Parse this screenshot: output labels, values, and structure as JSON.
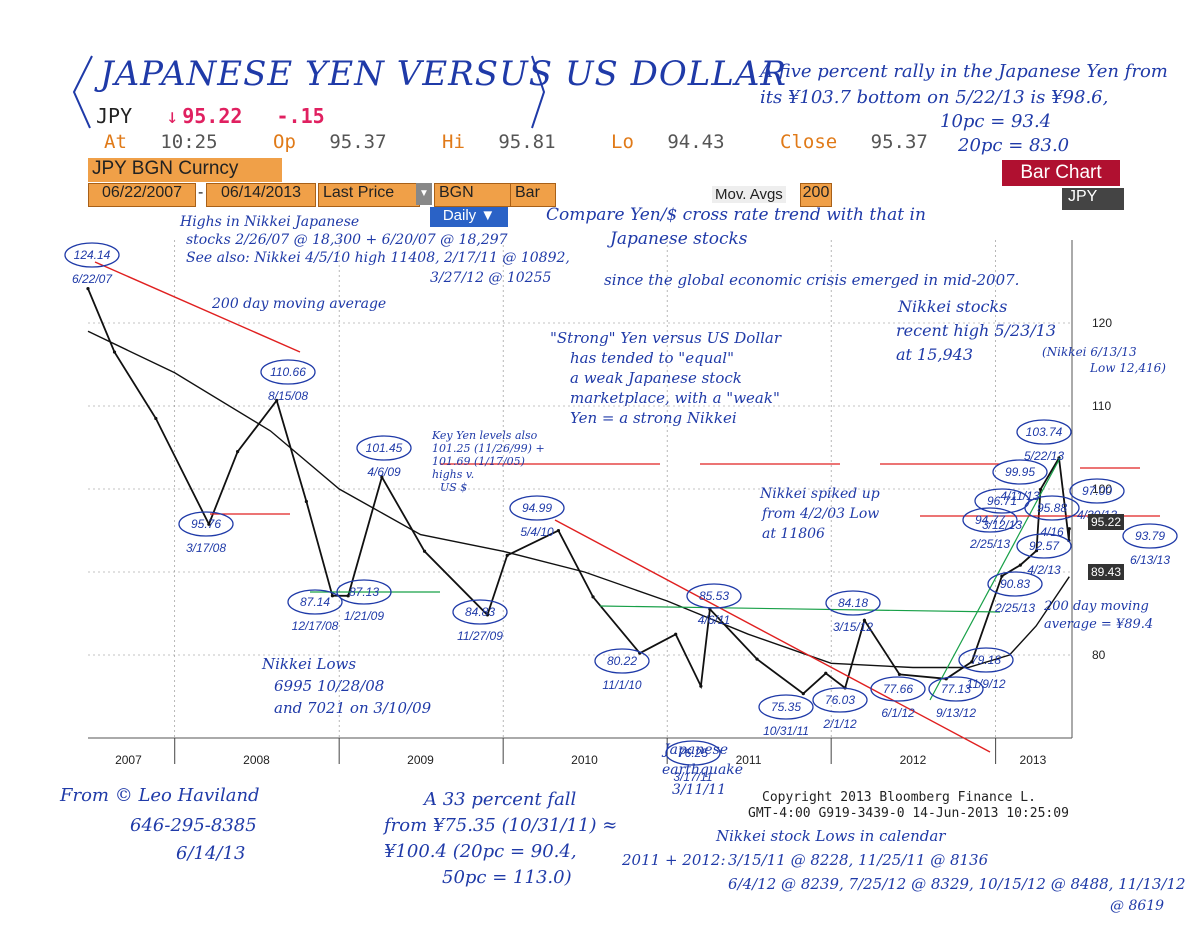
{
  "title": "JAPANESE YEN VERSUS US DOLLAR",
  "quote": {
    "ticker": "JPY",
    "arrow": "↓",
    "last": "95.22",
    "change": "-.15",
    "at_label": "At",
    "at_time": "10:25",
    "op_label": "Op",
    "op": "95.37",
    "hi_label": "Hi",
    "hi": "95.81",
    "lo_label": "Lo",
    "lo": "94.43",
    "close_label": "Close",
    "close": "95.37"
  },
  "toolbar": {
    "security": "JPY BGN Curncy",
    "start_date": "06/22/2007",
    "dash": "-",
    "end_date": "06/14/2013",
    "field": "Last Price",
    "source": "BGN",
    "style": "Bar",
    "mov_avgs_label": "Mov. Avgs",
    "mov_avgs_value": "200",
    "chart_type": "Bar Chart",
    "currency": "JPY",
    "period": "Daily ▼"
  },
  "copyright": {
    "line1": "Copyright 2013 Bloomberg Finance L.",
    "line2": "GMT-4:00 G919-3439-0 14-Jun-2013 10:25:09"
  },
  "price_tags": {
    "last": "95.22",
    "ma": "89.43"
  },
  "notes": {
    "top_right_1": "A five percent rally in the Japanese Yen from",
    "top_right_2": "its ¥103.7 bottom on 5/22/13 is ¥98.6,",
    "top_right_3": "10pc = 93.4",
    "top_right_4": "20pc = 83.0",
    "nikkei_highs_1": "Highs in Nikkei Japanese",
    "nikkei_highs_2": "stocks 2/26/07 @ 18,300 + 6/20/07 @ 18,297",
    "nikkei_highs_3": "See also: Nikkei 4/5/10 high 11408, 2/17/11 @ 10892,",
    "nikkei_highs_4": "3/27/12 @ 10255",
    "ma_label": "200 day moving average",
    "compare_1": "Compare Yen/$ cross rate trend with that in",
    "compare_2": "Japanese stocks",
    "compare_3": "since the global economic crisis emerged in mid-2007.",
    "strong_1": "\"Strong\" Yen versus US Dollar",
    "strong_2": "has tended to \"equal\"",
    "strong_3": "a weak Japanese stock",
    "strong_4": "marketplace, with a \"weak\"",
    "strong_5": "Yen = a strong Nikkei",
    "nikkei_recent_1": "Nikkei stocks",
    "nikkei_recent_2": "recent high 5/23/13",
    "nikkei_recent_3": "at 15,943",
    "nikkei_low_1": "(Nikkei 6/13/13",
    "nikkei_low_2": "Low 12,416)",
    "key_levels_1": "Key Yen levels also",
    "key_levels_2": "101.25 (11/26/99) +",
    "key_levels_3": "101.69 (1/17/05)",
    "key_levels_4": "highs v.",
    "key_levels_5": "US $",
    "nikkei_spike_1": "Nikkei spiked up",
    "nikkei_spike_2": "from 4/2/03 Low",
    "nikkei_spike_3": "at 11806",
    "nikkei_lows_1": "Nikkei Lows",
    "nikkei_lows_2": "6995 10/28/08",
    "nikkei_lows_3": "and 7021 on 3/10/09",
    "ma_note_1": "200 day moving",
    "ma_note_2": "average = ¥89.4",
    "quake_1": "Japanese",
    "quake_2": "earthquake",
    "quake_3": "3/11/11",
    "from_1": "From © Leo Haviland",
    "from_2": "646-295-8385",
    "from_3": "6/14/13",
    "fall_1": "A 33 percent fall",
    "fall_2": "from ¥75.35 (10/31/11) ≈",
    "fall_3": "¥100.4 (20pc = 90.4,",
    "fall_4": "50pc = 113.0)",
    "nikkei_cal_1": "Nikkei stock Lows in calendar",
    "nikkei_cal_2": "2011 + 2012:",
    "nikkei_cal_3": "3/15/11 @ 8228, 11/25/11 @ 8136",
    "nikkei_cal_4": "6/4/12 @ 8239, 7/25/12 @ 8329, 10/15/12 @ 8488, 11/13/12",
    "nikkei_cal_5": "@ 8619"
  },
  "chart_data": {
    "type": "line",
    "title": "",
    "xlabel": "",
    "ylabel": "",
    "ylim": [
      70,
      130
    ],
    "yticks": [
      80,
      90,
      100,
      110,
      120
    ],
    "year_labels": [
      "2007",
      "2008",
      "2009",
      "2010",
      "2011",
      "2012",
      "2013"
    ],
    "grid": true,
    "series": [
      {
        "name": "",
        "dates": [
          "2007-06-22",
          "2007-08-20",
          "2007-11-20",
          "2008-03-17",
          "2008-05-20",
          "2008-08-15",
          "2008-10-20",
          "2008-12-17",
          "2009-01-21",
          "2009-04-06",
          "2009-07-10",
          "2009-11-27",
          "2010-01-10",
          "2010-05-04",
          "2010-07-20",
          "2010-11-01",
          "2011-01-20",
          "2011-03-17",
          "2011-04-06",
          "2011-07-20",
          "2011-10-31",
          "2011-12-20",
          "2012-02-01",
          "2012-03-15",
          "2012-06-01",
          "2012-09-13",
          "2012-11-09",
          "2013-01-15",
          "2013-02-25",
          "2013-04-02",
          "2013-04-11",
          "2013-05-22",
          "2013-06-13",
          "2013-06-14"
        ],
        "values": [
          124.14,
          116.5,
          108.5,
          95.76,
          104.5,
          110.66,
          98.5,
          87.14,
          87.13,
          101.45,
          92.5,
          84.83,
          92.0,
          94.99,
          87.0,
          80.22,
          82.5,
          76.25,
          85.53,
          79.5,
          75.35,
          77.8,
          76.03,
          84.18,
          77.66,
          77.13,
          79.18,
          89.5,
          90.83,
          92.57,
          99.95,
          103.74,
          93.79,
          95.22
        ]
      },
      {
        "name": "200 day moving average",
        "dates": [
          "2007-06-22",
          "2008-01-01",
          "2008-08-01",
          "2009-01-01",
          "2009-07-01",
          "2010-01-01",
          "2010-07-01",
          "2011-01-01",
          "2011-07-01",
          "2012-01-01",
          "2012-07-01",
          "2012-11-01",
          "2013-02-01",
          "2013-04-01",
          "2013-06-14"
        ],
        "values": [
          119.0,
          114.0,
          107.0,
          100.0,
          94.5,
          92.5,
          90.0,
          86.5,
          82.5,
          79.0,
          78.5,
          78.5,
          80.0,
          83.5,
          89.43
        ]
      }
    ],
    "annotations": [
      {
        "label": "124.14",
        "date": "6/22/07"
      },
      {
        "label": "95.76",
        "date": "3/17/08"
      },
      {
        "label": "110.66",
        "date": "8/15/08"
      },
      {
        "label": "87.14",
        "date": "12/17/08"
      },
      {
        "label": "87.13",
        "date": "1/21/09"
      },
      {
        "label": "101.45",
        "date": "4/6/09"
      },
      {
        "label": "84.83",
        "date": "11/27/09"
      },
      {
        "label": "94.99",
        "date": "5/4/10"
      },
      {
        "label": "80.22",
        "date": "11/1/10"
      },
      {
        "label": "76.25",
        "date": "3/17/11"
      },
      {
        "label": "85.53",
        "date": "4/6/11"
      },
      {
        "label": "75.35",
        "date": "10/31/11"
      },
      {
        "label": "76.03",
        "date": "2/1/12"
      },
      {
        "label": "84.18",
        "date": "3/15/12"
      },
      {
        "label": "77.66",
        "date": "6/1/12"
      },
      {
        "label": "77.13",
        "date": "9/13/12"
      },
      {
        "label": "79.18",
        "date": "11/9/12"
      },
      {
        "label": "94.77",
        "date": "2/25/13"
      },
      {
        "label": "96.71",
        "date": "3/12/13"
      },
      {
        "label": "99.95",
        "date": "4/11/13"
      },
      {
        "label": "90.83",
        "date": "2/25/13"
      },
      {
        "label": "92.57",
        "date": "4/2/13"
      },
      {
        "label": "103.74",
        "date": "5/22/13"
      },
      {
        "label": "97.00",
        "date": "4/30/13"
      },
      {
        "label": "93.79",
        "date": "6/13/13"
      },
      {
        "label": "95.88",
        "date": "4/16"
      }
    ],
    "colors": {
      "price": "#111111",
      "ma": "#111111",
      "trend": "#e02020",
      "support": "#18a048",
      "notes": "#1f3aa8"
    }
  }
}
